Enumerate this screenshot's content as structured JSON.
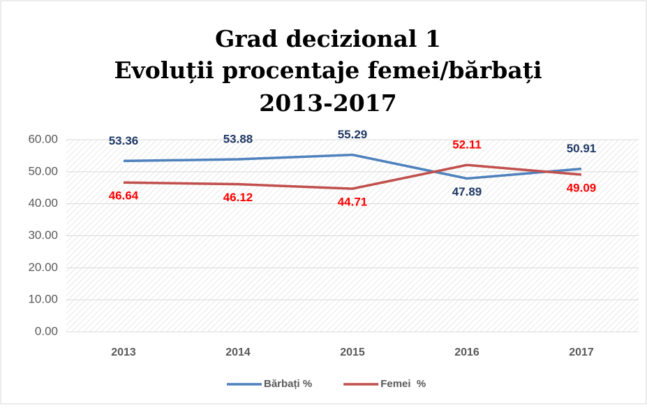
{
  "chart_data": {
    "type": "line",
    "title": [
      "Grad decizional 1",
      "Evoluții procentaje femei/bărbați",
      "2013-2017"
    ],
    "categories": [
      "2013",
      "2014",
      "2015",
      "2016",
      "2017"
    ],
    "series": [
      {
        "name": "Bărbați %",
        "color": "#4f81bd",
        "label_color": "#1f3864",
        "values": [
          53.36,
          53.88,
          55.29,
          47.89,
          50.91
        ]
      },
      {
        "name": "Femei  %",
        "color": "#c0504d",
        "label_color": "#ff0000",
        "values": [
          46.64,
          46.12,
          44.71,
          52.11,
          49.09
        ]
      }
    ],
    "ylim": [
      0,
      60
    ],
    "yticks": [
      {
        "value": 0,
        "label": "0.00"
      },
      {
        "value": 10,
        "label": "10.00"
      },
      {
        "value": 20,
        "label": "20.00"
      },
      {
        "value": 30,
        "label": "30.00"
      },
      {
        "value": 40,
        "label": "40.00"
      },
      {
        "value": 50,
        "label": "50.00"
      },
      {
        "value": 60,
        "label": "60.00"
      }
    ],
    "grid": true,
    "legend": "bottom"
  }
}
